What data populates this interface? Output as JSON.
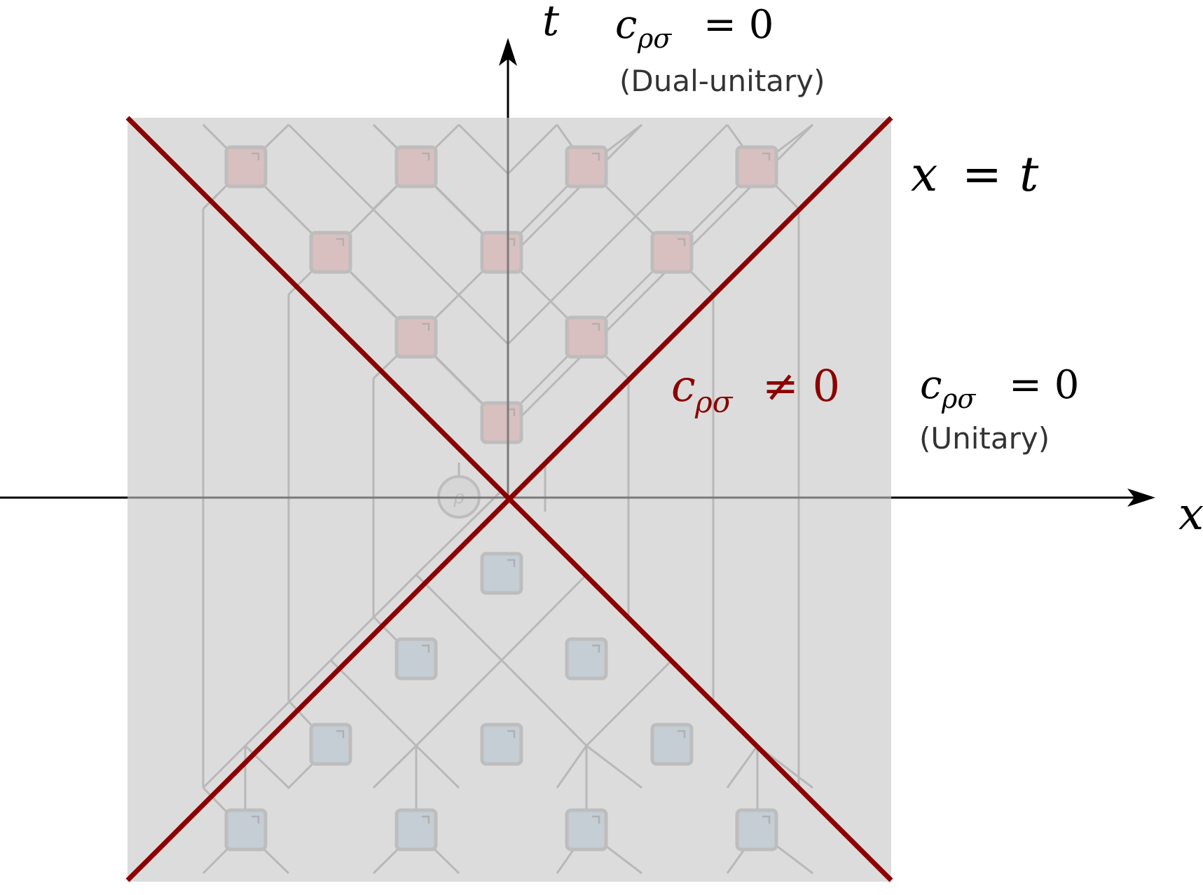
{
  "axes": {
    "x_label": "x",
    "t_label": "t"
  },
  "lightcone": {
    "line_label": {
      "lhs": "x",
      "eq": "=",
      "rhs": "t"
    }
  },
  "regions": {
    "top": {
      "c": "c",
      "sub": "ρσ",
      "rel": "= 0",
      "note": "(Dual-unitary)"
    },
    "inside": {
      "c": "c",
      "sub": "ρσ",
      "rel": "≠ 0"
    },
    "right": {
      "c": "c",
      "sub": "ρσ",
      "rel": "= 0",
      "note": "(Unitary)"
    }
  },
  "circuit": {
    "state_symbol": "ρ",
    "top_gate_rows": [
      4,
      3,
      2,
      1
    ],
    "bottom_gate_rows": [
      1,
      2,
      3,
      4
    ]
  },
  "colors": {
    "lightcone": "#8b0000",
    "background": "#dcdcdc",
    "gate_top": "#d9c0c0",
    "gate_bottom": "#c5cdd5",
    "gate_border": "#bdbdbd",
    "circuit_wire": "#b8b8b8",
    "axis": "#000000",
    "note_text": "#333333"
  }
}
